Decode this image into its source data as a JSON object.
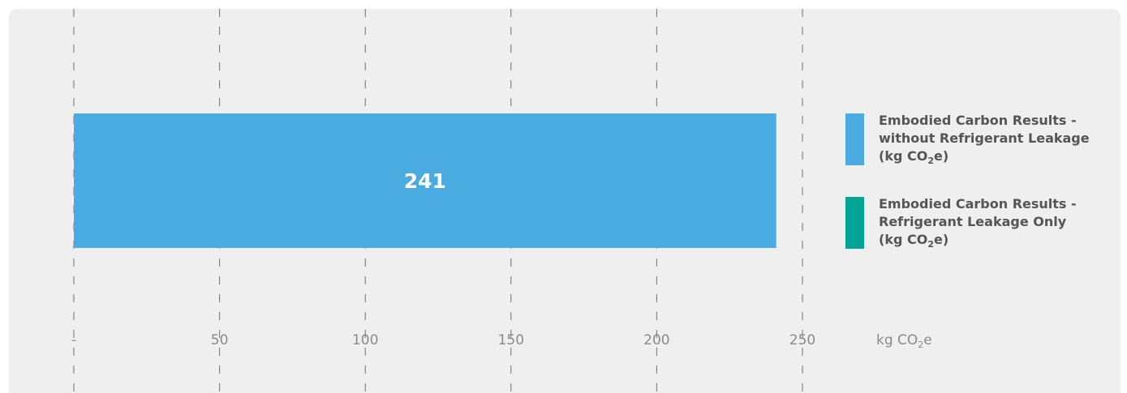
{
  "chart_data": {
    "type": "bar",
    "orientation": "horizontal",
    "stacked": true,
    "categories": [
      ""
    ],
    "series": [
      {
        "name": "Embodied Carbon Results - without Refrigerant Leakage (kg CO₂e)",
        "name_lines": [
          "Embodied Carbon Results -",
          "without Refrigerant Leakage",
          "(kg CO|2|e)"
        ],
        "values": [
          241
        ],
        "color": "#4aabe1"
      },
      {
        "name": "Embodied Carbon Results - Refrigerant Leakage Only (kg CO₂e)",
        "name_lines": [
          "Embodied Carbon Results -",
          "Refrigerant Leakage Only",
          "(kg CO|2|e)"
        ],
        "values": [
          0
        ],
        "color": "#00a496"
      }
    ],
    "data_labels": [
      "241"
    ],
    "xlim": [
      0,
      250
    ],
    "ticks": [
      0,
      50,
      100,
      150,
      200,
      250
    ],
    "tick_labels": [
      "-",
      "50",
      "100",
      "150",
      "200",
      "250"
    ],
    "xlabel": "kg CO₂e",
    "grid": "vertical-dashed",
    "legend_position": "right"
  }
}
